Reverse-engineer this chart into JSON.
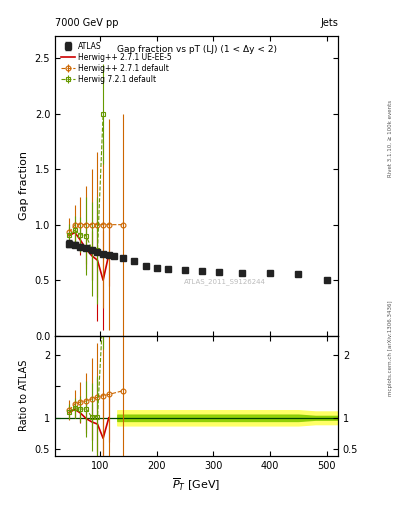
{
  "title_top_left": "7000 GeV pp",
  "title_top_right": "Jets",
  "main_title": "Gap fraction vs pT (LJ) (1 < Δy < 2)",
  "watermark": "ATLAS_2011_S9126244",
  "right_label_top": "Rivet 3.1.10, ≥ 100k events",
  "right_label_bottom": "mcplots.cern.ch [arXiv:1306.3436]",
  "xlabel": "$\\overline{P}_T$ [GeV]",
  "ylabel_main": "Gap fraction",
  "ylabel_ratio": "Ratio to ATLAS",
  "xlim": [
    20,
    520
  ],
  "ylim_main": [
    0.0,
    2.7
  ],
  "ylim_ratio": [
    0.4,
    2.3
  ],
  "atlas_x": [
    45,
    55,
    65,
    75,
    85,
    95,
    105,
    115,
    125,
    140,
    160,
    180,
    200,
    220,
    250,
    280,
    310,
    350,
    400,
    450,
    500
  ],
  "atlas_y": [
    0.83,
    0.82,
    0.8,
    0.79,
    0.77,
    0.755,
    0.74,
    0.73,
    0.72,
    0.7,
    0.67,
    0.63,
    0.61,
    0.6,
    0.595,
    0.58,
    0.572,
    0.565,
    0.562,
    0.558,
    0.5
  ],
  "atlas_yerr": [
    0.03,
    0.025,
    0.022,
    0.02,
    0.018,
    0.016,
    0.015,
    0.014,
    0.014,
    0.015,
    0.015,
    0.015,
    0.014,
    0.013,
    0.013,
    0.013,
    0.013,
    0.013,
    0.014,
    0.015,
    0.018
  ],
  "hwpp_def_x": [
    45,
    55,
    65,
    75,
    85,
    95,
    105,
    115,
    140
  ],
  "hwpp_def_y": [
    0.93,
    1.0,
    1.0,
    1.0,
    1.0,
    1.0,
    1.0,
    1.0,
    1.0
  ],
  "hwpp_def_yerrlo": [
    0.13,
    0.18,
    0.25,
    0.35,
    0.5,
    0.65,
    0.75,
    0.95,
    1.0
  ],
  "hwpp_def_yerrhi": [
    0.13,
    0.18,
    0.25,
    0.35,
    0.5,
    0.65,
    0.75,
    0.95,
    1.0
  ],
  "hwpp_ue_x": [
    45,
    55,
    65,
    75,
    85,
    95,
    105,
    115
  ],
  "hwpp_ue_y": [
    0.9,
    0.93,
    0.86,
    0.78,
    0.72,
    0.68,
    0.5,
    0.73
  ],
  "hwpp_ue_yerrlo": [
    0.08,
    0.1,
    0.13,
    0.18,
    0.22,
    0.55,
    0.45,
    0.28
  ],
  "hwpp_ue_yerrhi": [
    0.08,
    0.1,
    0.13,
    0.18,
    0.22,
    0.55,
    0.45,
    0.28
  ],
  "hw721_x": [
    45,
    55,
    65,
    75,
    85,
    95,
    105
  ],
  "hw721_y": [
    0.91,
    0.95,
    0.91,
    0.9,
    0.78,
    0.77,
    2.0
  ],
  "hw721_yerrlo": [
    0.1,
    0.13,
    0.16,
    0.35,
    0.42,
    0.48,
    0.45
  ],
  "hw721_yerrhi": [
    0.1,
    0.13,
    0.16,
    0.35,
    0.42,
    0.48,
    0.45
  ],
  "color_atlas": "#222222",
  "color_hwpp_def": "#cc6600",
  "color_hwpp_ue": "#cc0000",
  "color_hw721": "#669900"
}
